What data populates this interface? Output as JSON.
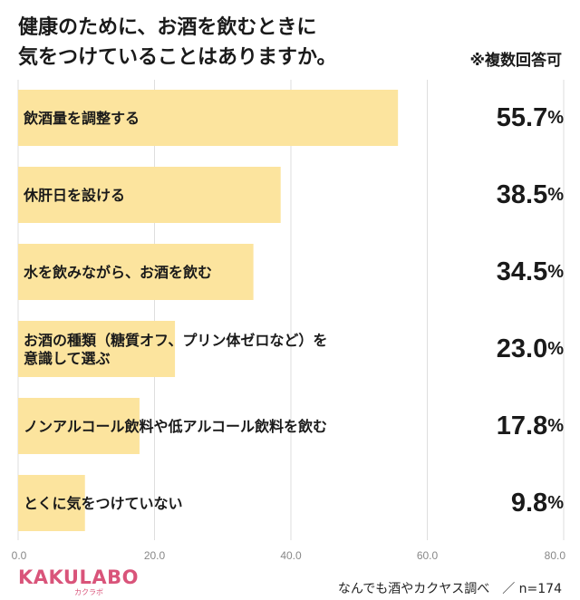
{
  "title": "健康のために、お酒を飲むときに\n気をつけていることはありますか。",
  "note": "※複数回答可",
  "chart_data": {
    "type": "bar",
    "orientation": "horizontal",
    "categories": [
      "飲酒量を調整する",
      "休肝日を設ける",
      "水を飲みながら、お酒を飲む",
      "お酒の種類（糖質オフ、プリン体ゼロなど）を\n意識して選ぶ",
      "ノンアルコール飲料や低アルコール飲料を飲む",
      "とくに気をつけていない"
    ],
    "values": [
      55.7,
      38.5,
      34.5,
      23.0,
      17.8,
      9.8
    ],
    "value_labels": [
      "55.7",
      "38.5",
      "34.5",
      "23.0",
      "17.8",
      "9.8"
    ],
    "value_unit": "%",
    "xlim": [
      0,
      80
    ],
    "x_ticks": [
      "0.0",
      "20.0",
      "40.0",
      "60.0",
      "80.0"
    ],
    "grid": true,
    "bar_color": "#fce49e"
  },
  "footer": {
    "logo": "KAKULABO",
    "logo_sub": "カクラボ",
    "source": "なんでも酒やカクヤス調べ　／ n=174"
  },
  "colors": {
    "logo": "#d9547a",
    "grid": "#dedede",
    "text": "#1a1a1a"
  }
}
